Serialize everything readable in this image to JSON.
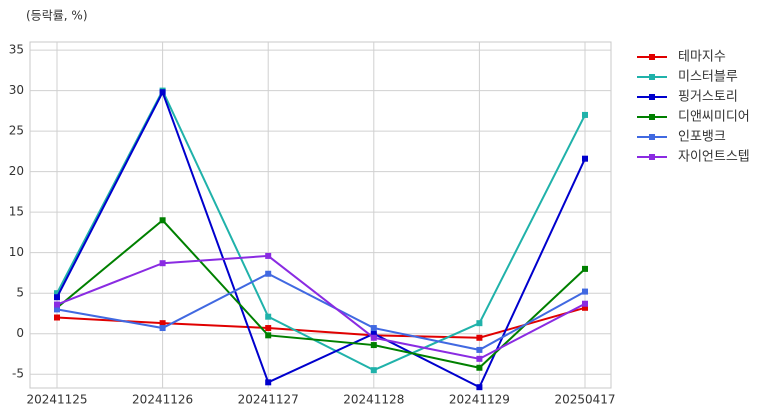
{
  "chart_data": {
    "type": "line",
    "y_label": "(등락률, %)",
    "categories": [
      "20241125",
      "20241126",
      "20241127",
      "20241128",
      "20241129",
      "20250417"
    ],
    "series": [
      {
        "name": "테마지수",
        "color": "#e00000",
        "values": [
          2.0,
          1.3,
          0.7,
          -0.2,
          -0.5,
          3.2
        ]
      },
      {
        "name": "미스터블루",
        "color": "#20b2aa",
        "values": [
          5.0,
          30.0,
          2.1,
          -4.5,
          1.3,
          27.0
        ]
      },
      {
        "name": "핑거스토리",
        "color": "#0000cd",
        "values": [
          4.5,
          29.8,
          -6.0,
          0.0,
          -6.6,
          21.6
        ]
      },
      {
        "name": "디앤씨미디어",
        "color": "#008000",
        "values": [
          3.2,
          14.0,
          -0.2,
          -1.4,
          -4.2,
          8.0
        ]
      },
      {
        "name": "인포뱅크",
        "color": "#4169e1",
        "values": [
          3.0,
          0.7,
          7.4,
          0.7,
          -2.0,
          5.2
        ]
      },
      {
        "name": "자이언트스텝",
        "color": "#8a2be2",
        "values": [
          3.6,
          8.7,
          9.6,
          -0.5,
          -3.1,
          3.7
        ]
      }
    ],
    "ylim": [
      -6.7,
      36
    ],
    "yticks": [
      -5,
      0,
      5,
      10,
      15,
      20,
      25,
      30,
      35
    ],
    "grid": true,
    "legend": "outside-right"
  }
}
